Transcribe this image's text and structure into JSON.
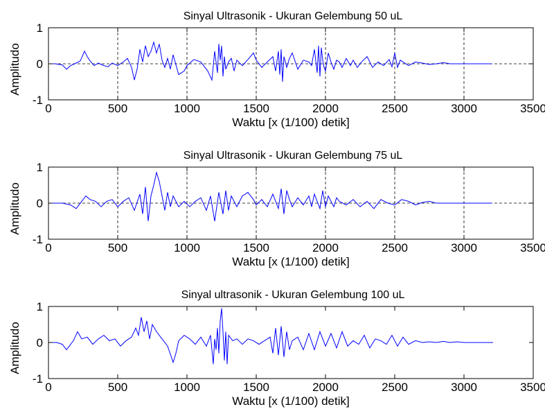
{
  "figure": {
    "background": "#ffffff",
    "line_color": "#0000ff",
    "grid_color": "#000000"
  },
  "chart_data": [
    {
      "type": "line",
      "title": "Sinyal Ultrasonik - Ukuran Gelembung 50 uL",
      "xlabel": "Waktu [x (1/100) detik]",
      "ylabel": "Amplitudo",
      "xlim": [
        0,
        3500
      ],
      "ylim": [
        -1,
        1
      ],
      "xticks": [
        "0",
        "500",
        "1000",
        "1500",
        "2000",
        "2500",
        "3000",
        "3500"
      ],
      "yticks": [
        "-1",
        "0",
        "1"
      ],
      "grid": true,
      "grid_style": "dashed",
      "series": [
        {
          "x": [
            0,
            50,
            100,
            130,
            160,
            200,
            230,
            260,
            280,
            300,
            330,
            360,
            400,
            430,
            460,
            500,
            540,
            570,
            600,
            620,
            640,
            660,
            680,
            700,
            720,
            740,
            760,
            780,
            800,
            820,
            840,
            860,
            880,
            900,
            940,
            980,
            1000,
            1050,
            1100,
            1150,
            1180,
            1200,
            1220,
            1230,
            1240,
            1250,
            1260,
            1270,
            1280,
            1300,
            1320,
            1340,
            1360,
            1400,
            1440,
            1480,
            1500,
            1540,
            1580,
            1620,
            1640,
            1660,
            1670,
            1680,
            1690,
            1700,
            1720,
            1740,
            1760,
            1800,
            1840,
            1880,
            1900,
            1920,
            1940,
            1950,
            1960,
            1970,
            1980,
            1990,
            2000,
            2020,
            2040,
            2060,
            2080,
            2100,
            2120,
            2150,
            2180,
            2200,
            2230,
            2260,
            2300,
            2340,
            2380,
            2420,
            2460,
            2480,
            2500,
            2520,
            2540,
            2560,
            2600,
            2650,
            2700,
            2750,
            2800,
            2850,
            2900,
            2950,
            3000,
            3100,
            3200
          ],
          "y": [
            0,
            0,
            -0.03,
            -0.15,
            -0.05,
            0.02,
            0.08,
            0.35,
            0.2,
            0.08,
            -0.05,
            0.02,
            -0.05,
            -0.08,
            0.02,
            -0.05,
            0.05,
            0.15,
            -0.1,
            -0.45,
            -0.15,
            0.4,
            0.05,
            0.5,
            0.2,
            0.35,
            0.6,
            0.3,
            0.55,
            0.1,
            -0.1,
            0.15,
            -0.15,
            0.25,
            -0.3,
            -0.2,
            -0.05,
            0.12,
            0.05,
            -0.2,
            -0.45,
            0.35,
            -0.25,
            0.55,
            0.1,
            0.5,
            -0.35,
            0.2,
            -0.15,
            0.05,
            0.15,
            -0.2,
            0.1,
            -0.05,
            0.12,
            0.3,
            0.1,
            -0.1,
            0.05,
            0.2,
            -0.2,
            0.35,
            -0.3,
            0.4,
            -0.5,
            0.2,
            -0.1,
            0.15,
            0.3,
            -0.15,
            0.1,
            0.05,
            -0.05,
            0.4,
            -0.25,
            0.5,
            -0.35,
            0.45,
            0.1,
            -0.1,
            -0.2,
            0.3,
            0.05,
            -0.15,
            0.1,
            0.05,
            -0.1,
            0.15,
            -0.05,
            0.1,
            -0.1,
            0.05,
            0.2,
            -0.1,
            0.05,
            -0.05,
            0.12,
            -0.08,
            0.3,
            -0.1,
            0.1,
            0.05,
            -0.05,
            0.05,
            0.02,
            -0.02,
            0,
            0.03,
            0,
            0,
            0,
            0,
            0
          ]
        }
      ]
    },
    {
      "type": "line",
      "title": "Sinyal Ultrasonik - Ukuran Gelembung 75 uL",
      "xlabel": "Waktu [x (1/100) detik]",
      "ylabel": "Amplitudo",
      "xlim": [
        0,
        3500
      ],
      "ylim": [
        -1,
        1
      ],
      "xticks": [
        "0",
        "500",
        "1000",
        "1500",
        "2000",
        "2500",
        "3000",
        "3500"
      ],
      "yticks": [
        "-1",
        "0",
        "1"
      ],
      "grid": true,
      "grid_style": "dashed",
      "series": [
        {
          "x": [
            0,
            100,
            160,
            200,
            240,
            270,
            300,
            340,
            380,
            420,
            460,
            500,
            540,
            580,
            620,
            660,
            680,
            700,
            720,
            740,
            760,
            780,
            800,
            820,
            840,
            860,
            880,
            900,
            940,
            980,
            1020,
            1060,
            1100,
            1140,
            1170,
            1200,
            1230,
            1260,
            1280,
            1300,
            1320,
            1340,
            1360,
            1400,
            1440,
            1480,
            1500,
            1540,
            1580,
            1620,
            1660,
            1680,
            1700,
            1720,
            1740,
            1760,
            1800,
            1840,
            1880,
            1900,
            1920,
            1940,
            1960,
            1980,
            2000,
            2020,
            2040,
            2060,
            2080,
            2100,
            2150,
            2200,
            2250,
            2300,
            2350,
            2400,
            2450,
            2500,
            2550,
            2600,
            2650,
            2700,
            2750,
            2800,
            2850,
            2900,
            2950,
            3000,
            3100,
            3200
          ],
          "y": [
            0,
            0,
            -0.05,
            -0.15,
            0.05,
            0.2,
            0.1,
            0.05,
            -0.1,
            0.05,
            0.1,
            -0.1,
            0.05,
            0.15,
            -0.2,
            0.25,
            -0.3,
            0.45,
            -0.5,
            0.2,
            0.5,
            0.85,
            0.6,
            0.2,
            -0.2,
            0.3,
            -0.1,
            0.2,
            -0.1,
            0.05,
            -0.1,
            0.05,
            0.15,
            -0.2,
            0.2,
            -0.5,
            0.3,
            -0.3,
            0.35,
            -0.2,
            0.2,
            0.05,
            -0.1,
            0.2,
            0.3,
            0.1,
            -0.05,
            0.1,
            -0.1,
            0.25,
            -0.15,
            0.4,
            -0.3,
            0.35,
            0.1,
            -0.1,
            0.15,
            -0.05,
            0.2,
            -0.1,
            0.25,
            0.05,
            -0.15,
            0.35,
            -0.1,
            0.2,
            0.05,
            -0.1,
            0.15,
            0.05,
            -0.05,
            0.1,
            -0.1,
            0.05,
            -0.15,
            0.1,
            0,
            -0.05,
            0.1,
            0.05,
            -0.05,
            0.02,
            0.05,
            0,
            0,
            0,
            0,
            0,
            0,
            0
          ]
        }
      ]
    },
    {
      "type": "line",
      "title": "Sinyal ultrasonik - Ukuran Gelembung 100 uL",
      "xlabel": "Waktu [x (1/100) detik]",
      "ylabel": "Amplitudo",
      "xlim": [
        0,
        3500
      ],
      "ylim": [
        -1,
        1
      ],
      "xticks": [
        "0",
        "500",
        "1000",
        "1500",
        "2000",
        "2500",
        "3000",
        "3500"
      ],
      "yticks": [
        "-1",
        "0",
        "1"
      ],
      "grid": false,
      "series": [
        {
          "x": [
            0,
            60,
            100,
            130,
            150,
            180,
            210,
            240,
            280,
            320,
            360,
            400,
            440,
            480,
            520,
            560,
            600,
            630,
            650,
            670,
            690,
            710,
            730,
            750,
            780,
            820,
            860,
            900,
            920,
            940,
            980,
            1020,
            1060,
            1100,
            1140,
            1170,
            1190,
            1200,
            1210,
            1220,
            1230,
            1240,
            1250,
            1260,
            1270,
            1280,
            1290,
            1300,
            1330,
            1360,
            1400,
            1440,
            1480,
            1520,
            1560,
            1600,
            1620,
            1640,
            1660,
            1680,
            1700,
            1720,
            1740,
            1760,
            1800,
            1840,
            1880,
            1920,
            1960,
            2000,
            2040,
            2080,
            2120,
            2160,
            2200,
            2240,
            2280,
            2320,
            2360,
            2400,
            2440,
            2480,
            2520,
            2560,
            2600,
            2650,
            2700,
            2750,
            2800,
            2850,
            2900,
            2950,
            3000,
            3100,
            3210
          ],
          "y": [
            0,
            0,
            -0.05,
            -0.2,
            -0.1,
            0.05,
            0.3,
            0.1,
            0.15,
            -0.05,
            0.1,
            0.2,
            0.05,
            0.1,
            -0.1,
            0.05,
            0.15,
            0.4,
            0.2,
            0.7,
            0.3,
            0.6,
            0.1,
            0.5,
            0.3,
            0.1,
            -0.1,
            -0.55,
            -0.3,
            0.05,
            0.2,
            0.1,
            -0.05,
            0.15,
            -0.1,
            0.2,
            -0.6,
            0.1,
            -0.2,
            0.4,
            -0.3,
            0.6,
            0.95,
            0.3,
            -0.5,
            0.3,
            -0.6,
            0.2,
            0.05,
            0.1,
            -0.05,
            0.1,
            0.05,
            -0.05,
            0.05,
            0.15,
            -0.3,
            0.4,
            -0.35,
            0.45,
            -0.4,
            0.3,
            -0.2,
            0.05,
            0.15,
            -0.2,
            0.25,
            -0.2,
            0.3,
            -0.1,
            0.25,
            -0.15,
            0.3,
            -0.1,
            0.05,
            -0.05,
            0.2,
            -0.15,
            0.1,
            0.05,
            -0.05,
            0.2,
            -0.1,
            0.15,
            -0.05,
            0.05,
            0,
            0.02,
            0,
            0.03,
            0,
            0.02,
            0,
            0,
            0
          ]
        }
      ]
    }
  ]
}
